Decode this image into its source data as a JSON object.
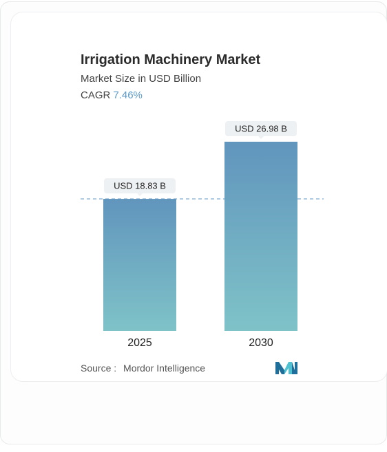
{
  "header": {
    "title": "Irrigation Machinery Market",
    "subtitle": "Market Size in USD Billion",
    "cagr_label": "CAGR",
    "cagr_value": "7.46%"
  },
  "footer": {
    "source_label": "Source :",
    "source_name": "Mordor Intelligence",
    "logo_icon": "mordor-intelligence-logo-icon"
  },
  "colors": {
    "bar_top": "#6195bd",
    "bar_bottom": "#7fc3c8",
    "reference_line": "#6a9cc9",
    "cagr_accent": "#5b9ac7",
    "logo_dark": "#1f6f9a",
    "logo_light": "#4fc1d1"
  },
  "chart_data": {
    "type": "bar",
    "title": "Irrigation Machinery Market",
    "subtitle": "Market Size in USD Billion",
    "categories": [
      "2025",
      "2030"
    ],
    "values": [
      18.83,
      26.98
    ],
    "data_labels": [
      "USD 18.83 B",
      "USD 26.98 B"
    ],
    "reference_line_at": 18.83,
    "ylim": [
      0,
      26.98
    ],
    "grid": false,
    "legend": "none"
  }
}
